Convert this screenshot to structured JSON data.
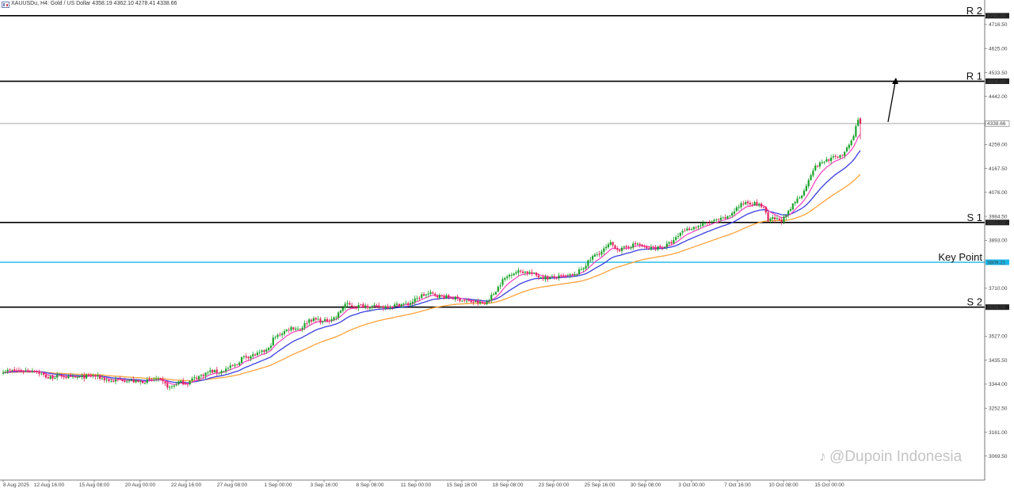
{
  "header": {
    "title": "XAUUSDu, H4:  Gold / US Dollar  4358.19 4362.10 4278.41 4338.66"
  },
  "watermark": "@Dupoin Indonesia",
  "colors": {
    "background": "#ffffff",
    "bull": "#1aa32a",
    "bear": "#e0245e",
    "ma_fast": "#ff3fbf",
    "ma_mid": "#3a3fe0",
    "ma_slow": "#ffa23a",
    "level_line": "#000000",
    "key_point": "#1ab7ea",
    "price_line": "#999999"
  },
  "chart_data": {
    "type": "candlestick",
    "symbol": "XAUUSDu",
    "timeframe": "H4",
    "ylim": [
      2978,
      4810
    ],
    "y_ticks": [
      "4716.50",
      "4625.00",
      "4533.50",
      "4442.00",
      "4259.00",
      "4167.50",
      "4076.00",
      "3984.50",
      "3893.00",
      "3710.00",
      "3527.00",
      "3435.50",
      "3344.00",
      "3252.50",
      "3161.00",
      "3069.50"
    ],
    "x_ticks": [
      "8 Aug 2025",
      "12 Aug 16:00",
      "15 Aug 08:00",
      "20 Aug 00:00",
      "22 Aug 16:00",
      "27 Aug 08:00",
      "1 Sep 00:00",
      "3 Sep 16:00",
      "8 Sep 08:00",
      "11 Sep 00:00",
      "15 Sep 16:00",
      "18 Sep 08:00",
      "23 Sep 00:00",
      "25 Sep 16:00",
      "30 Sep 08:00",
      "3 Oct 00:00",
      "7 Oct 16:00",
      "10 Oct 08:00",
      "15 Oct 00:00"
    ],
    "levels": [
      {
        "label": "R 2",
        "value": 4750.0,
        "value_text": "4750.00",
        "kind": "resistance"
      },
      {
        "label": "R 1",
        "value": 4500.0,
        "value_text": "4500.00",
        "kind": "resistance"
      },
      {
        "label": "S 1",
        "value": 3961.0,
        "value_text": "3961.00",
        "kind": "support"
      },
      {
        "label": "Key Point",
        "value": 3809.21,
        "value_text": "3809.21",
        "kind": "key"
      },
      {
        "label": "S 2",
        "value": 3638.05,
        "value_text": "3638.05",
        "kind": "support"
      }
    ],
    "current_price": {
      "value": 4338.66,
      "value_text": "4338.66"
    },
    "price_path": [
      [
        0,
        3395
      ],
      [
        8,
        3396
      ],
      [
        14,
        3397
      ],
      [
        20,
        3368
      ],
      [
        26,
        3377
      ],
      [
        30,
        3367
      ],
      [
        36,
        3372
      ],
      [
        40,
        3377
      ],
      [
        44,
        3366
      ],
      [
        48,
        3355
      ],
      [
        52,
        3362
      ],
      [
        56,
        3358
      ],
      [
        60,
        3352
      ],
      [
        64,
        3356
      ],
      [
        68,
        3364
      ],
      [
        70,
        3356
      ],
      [
        74,
        3330
      ],
      [
        76,
        3340
      ],
      [
        78,
        3352
      ],
      [
        82,
        3348
      ],
      [
        84,
        3363
      ],
      [
        88,
        3377
      ],
      [
        92,
        3393
      ],
      [
        96,
        3390
      ],
      [
        100,
        3405
      ],
      [
        104,
        3419
      ],
      [
        106,
        3445
      ],
      [
        110,
        3452
      ],
      [
        114,
        3461
      ],
      [
        118,
        3478
      ],
      [
        120,
        3517
      ],
      [
        124,
        3540
      ],
      [
        128,
        3560
      ],
      [
        132,
        3555
      ],
      [
        136,
        3590
      ],
      [
        140,
        3590
      ],
      [
        142,
        3582
      ],
      [
        144,
        3588
      ],
      [
        148,
        3600
      ],
      [
        152,
        3650
      ],
      [
        156,
        3640
      ],
      [
        160,
        3645
      ],
      [
        164,
        3640
      ],
      [
        168,
        3638
      ],
      [
        172,
        3642
      ],
      [
        176,
        3648
      ],
      [
        180,
        3650
      ],
      [
        184,
        3670
      ],
      [
        186,
        3683
      ],
      [
        190,
        3689
      ],
      [
        194,
        3680
      ],
      [
        198,
        3675
      ],
      [
        202,
        3670
      ],
      [
        206,
        3660
      ],
      [
        210,
        3656
      ],
      [
        214,
        3650
      ],
      [
        218,
        3690
      ],
      [
        222,
        3740
      ],
      [
        226,
        3768
      ],
      [
        230,
        3775
      ],
      [
        234,
        3770
      ],
      [
        238,
        3755
      ],
      [
        242,
        3749
      ],
      [
        246,
        3752
      ],
      [
        250,
        3756
      ],
      [
        254,
        3760
      ],
      [
        258,
        3790
      ],
      [
        262,
        3830
      ],
      [
        266,
        3850
      ],
      [
        270,
        3880
      ],
      [
        274,
        3855
      ],
      [
        278,
        3870
      ],
      [
        282,
        3880
      ],
      [
        286,
        3860
      ],
      [
        290,
        3865
      ],
      [
        294,
        3870
      ],
      [
        298,
        3890
      ],
      [
        302,
        3930
      ],
      [
        306,
        3940
      ],
      [
        310,
        3950
      ],
      [
        314,
        3962
      ],
      [
        318,
        3970
      ],
      [
        322,
        3980
      ],
      [
        326,
        4016
      ],
      [
        330,
        4040
      ],
      [
        334,
        4033
      ],
      [
        338,
        4020
      ],
      [
        340,
        3965
      ],
      [
        342,
        3975
      ],
      [
        346,
        3970
      ],
      [
        348,
        3985
      ],
      [
        352,
        4040
      ],
      [
        356,
        4080
      ],
      [
        358,
        4128
      ],
      [
        360,
        4164
      ],
      [
        362,
        4180
      ],
      [
        366,
        4200
      ],
      [
        370,
        4210
      ],
      [
        374,
        4225
      ],
      [
        376,
        4258
      ],
      [
        378,
        4290
      ],
      [
        380,
        4360
      ],
      [
        381,
        4338
      ]
    ]
  }
}
